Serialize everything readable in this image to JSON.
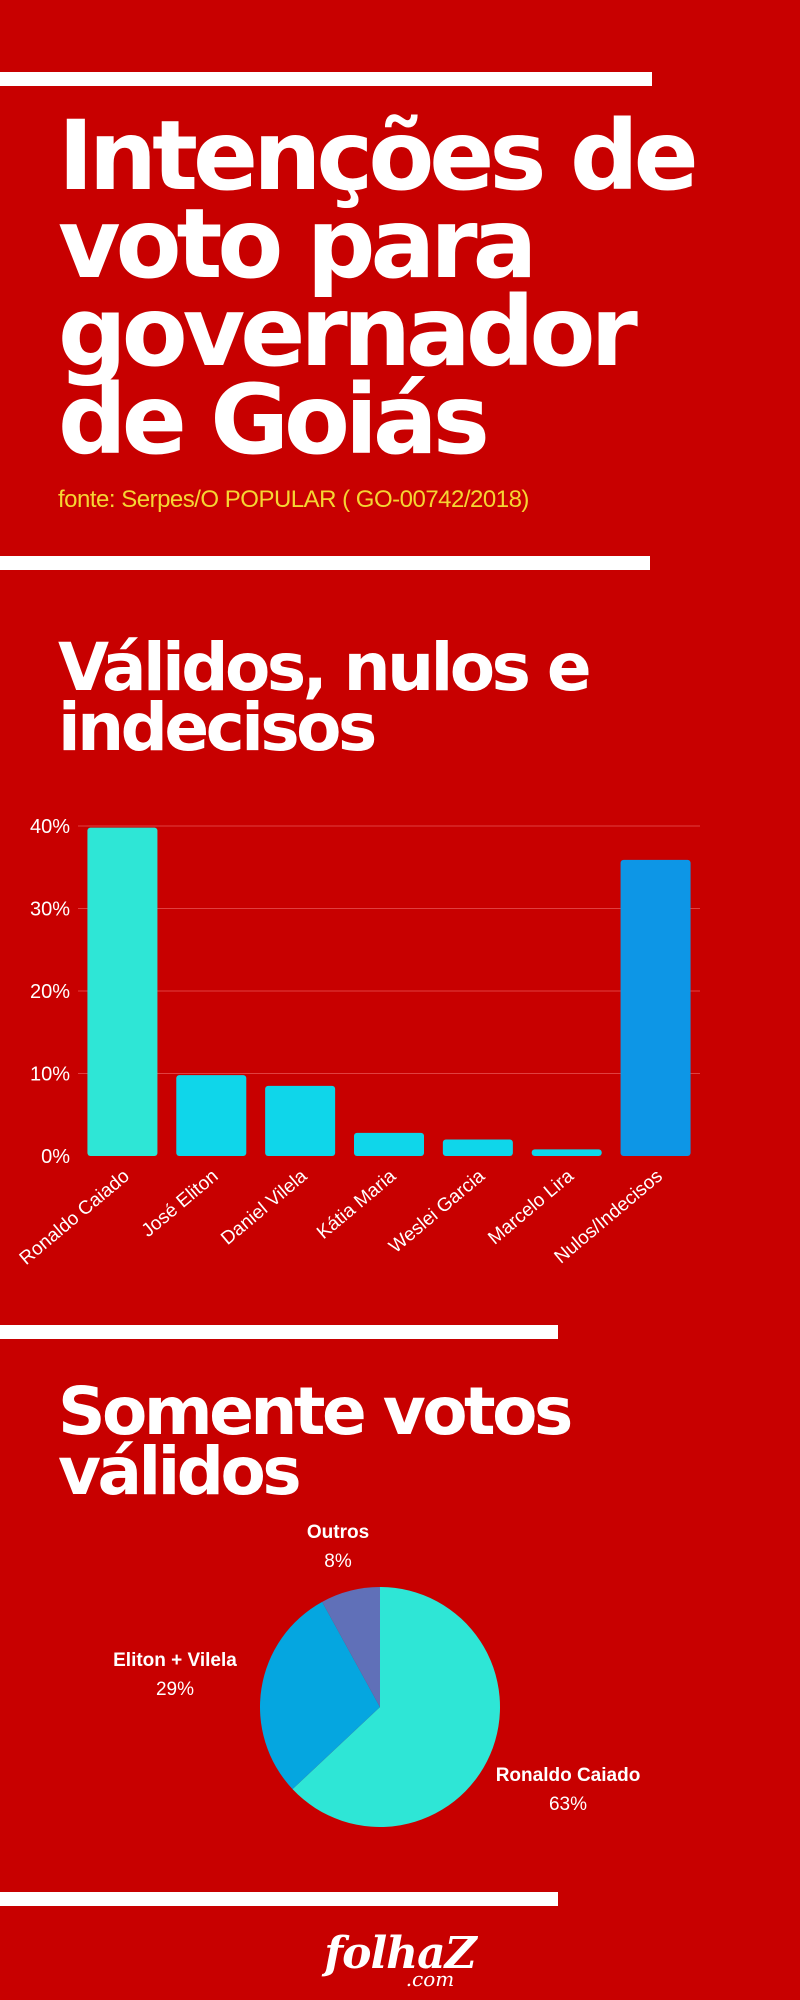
{
  "header": {
    "title": "Intenções de voto para governador de Goiás",
    "source": "fonte: Serpes/O POPULAR ( GO-00742/2018)"
  },
  "sections": {
    "bar_title": "Válidos, nulos e indecisos",
    "pie_title": "Somente votos válidos"
  },
  "logo": {
    "main": "folhaZ",
    "sub": ".com"
  },
  "colors": {
    "background": "#c80000",
    "gridline": "#e04040",
    "source_text": "#f5d533"
  },
  "chart_data": [
    {
      "type": "bar",
      "title": "Válidos, nulos e indecisos",
      "categories": [
        "Ronaldo Caiado",
        "José Eliton",
        "Daniel Vilela",
        "Kátia Maria",
        "Weslei Garcia",
        "Marcelo Lira",
        "Nulos/Indecisos"
      ],
      "values": [
        39.8,
        9.8,
        8.5,
        2.8,
        2.0,
        0.8,
        35.9
      ],
      "colors": [
        "#2ee6d6",
        "#0fd6ea",
        "#0fd6ea",
        "#0fd6ea",
        "#0fd6ea",
        "#0fd6ea",
        "#0d96e6"
      ],
      "yticks": [
        "0%",
        "10%",
        "20%",
        "30%",
        "40%"
      ],
      "ylim": [
        0,
        40
      ],
      "grid": true,
      "legend": "none"
    },
    {
      "type": "pie",
      "title": "Somente votos válidos",
      "slices": [
        {
          "label": "Ronaldo Caiado",
          "value": 63,
          "display": "63%",
          "color": "#2ee6d6"
        },
        {
          "label": "Eliton + Vilela",
          "value": 29,
          "display": "29%",
          "color": "#05a6e0"
        },
        {
          "label": "Outros",
          "value": 8,
          "display": "8%",
          "color": "#6070b8"
        }
      ]
    }
  ]
}
